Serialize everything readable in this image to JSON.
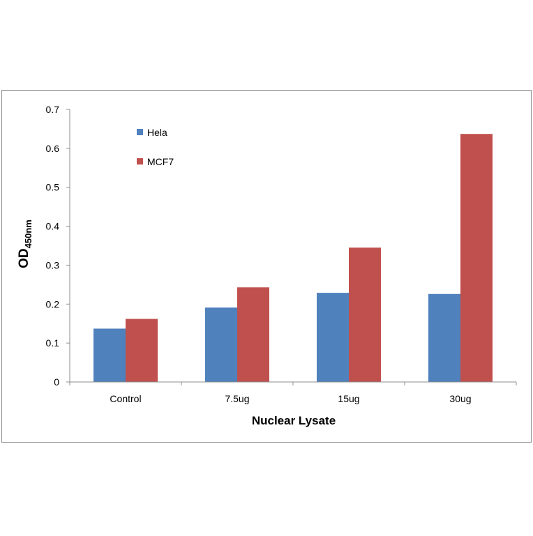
{
  "chart_data": {
    "type": "bar",
    "categories": [
      "Control",
      "7.5ug",
      "15ug",
      "30ug"
    ],
    "series": [
      {
        "name": "Hela",
        "color": "#4f81bd",
        "values": [
          0.137,
          0.191,
          0.229,
          0.226
        ]
      },
      {
        "name": "MCF7",
        "color": "#c0504d",
        "values": [
          0.162,
          0.243,
          0.345,
          0.637
        ]
      }
    ],
    "ylabel_main": "OD",
    "ylabel_sub": "450nm",
    "xlabel": "Nuclear Lysate",
    "ylim": [
      0,
      0.7
    ],
    "yticks": [
      "0",
      "0.1",
      "0.2",
      "0.3",
      "0.4",
      "0.5",
      "0.6",
      "0.7"
    ],
    "grid": false,
    "legend_position": "top-left"
  }
}
